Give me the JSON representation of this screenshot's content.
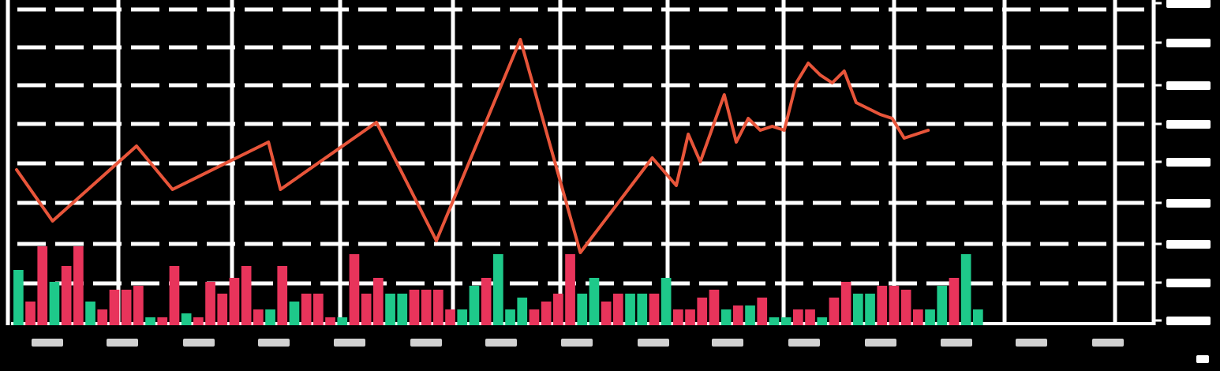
{
  "chart_data": {
    "type": "bar+line",
    "title": "",
    "xlabel": "",
    "ylabel": "",
    "grid": true,
    "legend": "none",
    "colors": {
      "background": "#000000",
      "grid": "#ffffff",
      "price_line": "#e8553a",
      "volume_up": "#1ec98a",
      "volume_down": "#e8345b"
    },
    "price_ylim": [
      0,
      8
    ],
    "volume_ylim": [
      0,
      10
    ],
    "price_series": [
      {
        "x": 0,
        "y": 3.9
      },
      {
        "x": 3,
        "y": 2.6
      },
      {
        "x": 10,
        "y": 4.5
      },
      {
        "x": 13,
        "y": 3.4
      },
      {
        "x": 21,
        "y": 4.6
      },
      {
        "x": 22,
        "y": 3.4
      },
      {
        "x": 30,
        "y": 5.1
      },
      {
        "x": 35,
        "y": 2.1
      },
      {
        "x": 42,
        "y": 7.2
      },
      {
        "x": 47,
        "y": 1.8
      },
      {
        "x": 53,
        "y": 4.2
      },
      {
        "x": 55,
        "y": 3.5
      },
      {
        "x": 56,
        "y": 4.8
      },
      {
        "x": 57,
        "y": 4.1
      },
      {
        "x": 59,
        "y": 5.8
      },
      {
        "x": 60,
        "y": 4.6
      },
      {
        "x": 61,
        "y": 5.2
      },
      {
        "x": 62,
        "y": 4.9
      },
      {
        "x": 63,
        "y": 5.0
      },
      {
        "x": 64,
        "y": 4.9
      },
      {
        "x": 65,
        "y": 6.1
      },
      {
        "x": 66,
        "y": 6.6
      },
      {
        "x": 67,
        "y": 6.3
      },
      {
        "x": 68,
        "y": 6.1
      },
      {
        "x": 69,
        "y": 6.4
      },
      {
        "x": 70,
        "y": 5.6
      },
      {
        "x": 72,
        "y": 5.3
      },
      {
        "x": 73,
        "y": 5.2
      },
      {
        "x": 74,
        "y": 4.7
      },
      {
        "x": 75,
        "y": 4.8
      },
      {
        "x": 76,
        "y": 4.9
      }
    ],
    "volume_bars": [
      {
        "x": 0,
        "v": 7,
        "dir": "up"
      },
      {
        "x": 1,
        "v": 3,
        "dir": "down"
      },
      {
        "x": 2,
        "v": 10,
        "dir": "down"
      },
      {
        "x": 3,
        "v": 5.5,
        "dir": "up"
      },
      {
        "x": 4,
        "v": 7.5,
        "dir": "down"
      },
      {
        "x": 5,
        "v": 10,
        "dir": "down"
      },
      {
        "x": 6,
        "v": 3,
        "dir": "up"
      },
      {
        "x": 7,
        "v": 2,
        "dir": "down"
      },
      {
        "x": 8,
        "v": 4.5,
        "dir": "down"
      },
      {
        "x": 9,
        "v": 4.5,
        "dir": "down"
      },
      {
        "x": 10,
        "v": 5,
        "dir": "down"
      },
      {
        "x": 11,
        "v": 1,
        "dir": "up"
      },
      {
        "x": 12,
        "v": 1,
        "dir": "down"
      },
      {
        "x": 13,
        "v": 7.5,
        "dir": "down"
      },
      {
        "x": 14,
        "v": 1.5,
        "dir": "up"
      },
      {
        "x": 15,
        "v": 1,
        "dir": "down"
      },
      {
        "x": 16,
        "v": 5.5,
        "dir": "down"
      },
      {
        "x": 17,
        "v": 4,
        "dir": "down"
      },
      {
        "x": 18,
        "v": 6,
        "dir": "down"
      },
      {
        "x": 19,
        "v": 7.5,
        "dir": "down"
      },
      {
        "x": 20,
        "v": 2,
        "dir": "down"
      },
      {
        "x": 21,
        "v": 2,
        "dir": "up"
      },
      {
        "x": 22,
        "v": 7.5,
        "dir": "down"
      },
      {
        "x": 23,
        "v": 3,
        "dir": "up"
      },
      {
        "x": 24,
        "v": 4,
        "dir": "down"
      },
      {
        "x": 25,
        "v": 4,
        "dir": "down"
      },
      {
        "x": 26,
        "v": 1,
        "dir": "down"
      },
      {
        "x": 27,
        "v": 1,
        "dir": "up"
      },
      {
        "x": 28,
        "v": 9,
        "dir": "down"
      },
      {
        "x": 29,
        "v": 4,
        "dir": "down"
      },
      {
        "x": 30,
        "v": 6,
        "dir": "down"
      },
      {
        "x": 31,
        "v": 4,
        "dir": "up"
      },
      {
        "x": 32,
        "v": 4,
        "dir": "up"
      },
      {
        "x": 33,
        "v": 4.5,
        "dir": "down"
      },
      {
        "x": 34,
        "v": 4.5,
        "dir": "down"
      },
      {
        "x": 35,
        "v": 4.5,
        "dir": "down"
      },
      {
        "x": 36,
        "v": 2,
        "dir": "down"
      },
      {
        "x": 37,
        "v": 2,
        "dir": "up"
      },
      {
        "x": 38,
        "v": 5,
        "dir": "up"
      },
      {
        "x": 39,
        "v": 6,
        "dir": "down"
      },
      {
        "x": 40,
        "v": 9,
        "dir": "up"
      },
      {
        "x": 41,
        "v": 2,
        "dir": "up"
      },
      {
        "x": 42,
        "v": 3.5,
        "dir": "up"
      },
      {
        "x": 43,
        "v": 2,
        "dir": "down"
      },
      {
        "x": 44,
        "v": 3,
        "dir": "down"
      },
      {
        "x": 45,
        "v": 4,
        "dir": "down"
      },
      {
        "x": 46,
        "v": 9,
        "dir": "down"
      },
      {
        "x": 47,
        "v": 4,
        "dir": "up"
      },
      {
        "x": 48,
        "v": 6,
        "dir": "up"
      },
      {
        "x": 49,
        "v": 3,
        "dir": "down"
      },
      {
        "x": 50,
        "v": 4,
        "dir": "down"
      },
      {
        "x": 51,
        "v": 4,
        "dir": "up"
      },
      {
        "x": 52,
        "v": 4,
        "dir": "up"
      },
      {
        "x": 53,
        "v": 4,
        "dir": "down"
      },
      {
        "x": 54,
        "v": 6,
        "dir": "up"
      },
      {
        "x": 55,
        "v": 2,
        "dir": "down"
      },
      {
        "x": 56,
        "v": 2,
        "dir": "down"
      },
      {
        "x": 57,
        "v": 3.5,
        "dir": "down"
      },
      {
        "x": 58,
        "v": 4.5,
        "dir": "down"
      },
      {
        "x": 59,
        "v": 2,
        "dir": "up"
      },
      {
        "x": 60,
        "v": 2.5,
        "dir": "down"
      },
      {
        "x": 61,
        "v": 2.5,
        "dir": "up"
      },
      {
        "x": 62,
        "v": 3.5,
        "dir": "down"
      },
      {
        "x": 63,
        "v": 1,
        "dir": "up"
      },
      {
        "x": 64,
        "v": 1,
        "dir": "up"
      },
      {
        "x": 65,
        "v": 2,
        "dir": "down"
      },
      {
        "x": 66,
        "v": 2,
        "dir": "down"
      },
      {
        "x": 67,
        "v": 1,
        "dir": "up"
      },
      {
        "x": 68,
        "v": 3.5,
        "dir": "down"
      },
      {
        "x": 69,
        "v": 5.5,
        "dir": "down"
      },
      {
        "x": 70,
        "v": 4,
        "dir": "up"
      },
      {
        "x": 71,
        "v": 4,
        "dir": "up"
      },
      {
        "x": 72,
        "v": 5,
        "dir": "down"
      },
      {
        "x": 73,
        "v": 5,
        "dir": "down"
      },
      {
        "x": 74,
        "v": 4.5,
        "dir": "down"
      },
      {
        "x": 75,
        "v": 2,
        "dir": "down"
      },
      {
        "x": 76,
        "v": 2,
        "dir": "up"
      },
      {
        "x": 77,
        "v": 5,
        "dir": "up"
      },
      {
        "x": 78,
        "v": 6,
        "dir": "down"
      },
      {
        "x": 79,
        "v": 9,
        "dir": "up"
      },
      {
        "x": 80,
        "v": 2,
        "dir": "up"
      }
    ],
    "x_ticks_count": 15,
    "y_ticks_count": 9
  }
}
